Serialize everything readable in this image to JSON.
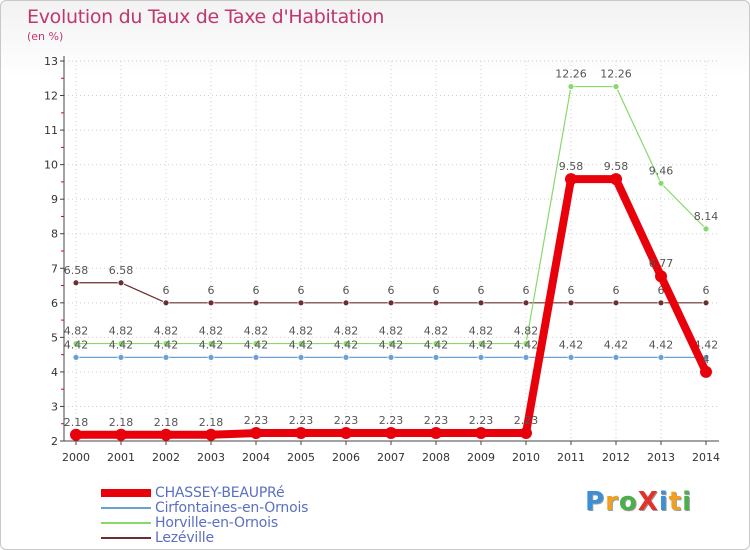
{
  "title": "Evolution du Taux de Taxe d'Habitation",
  "subtitle": "(en %)",
  "logo": {
    "text": "ProXiti",
    "letter_colors": [
      "#3a8fd6",
      "#f0a020",
      "#4cae4c",
      "#e0332b",
      "#3a8fd6",
      "#f0a020",
      "#4cae4c"
    ]
  },
  "chart_data": {
    "type": "line",
    "x": [
      "2000",
      "2001",
      "2002",
      "2003",
      "2004",
      "2005",
      "2006",
      "2007",
      "2008",
      "2009",
      "2010",
      "2011",
      "2012",
      "2013",
      "2014"
    ],
    "ylim": [
      2,
      13
    ],
    "yticks": [
      "2",
      "3",
      "4",
      "5",
      "6",
      "7",
      "8",
      "9",
      "10",
      "11",
      "12",
      "13"
    ],
    "grid": true,
    "legend_position": "bottom-left",
    "series": [
      {
        "name": "Lezéville",
        "color": "#6b2f2f",
        "width": 1.2,
        "marker": 3,
        "values": [
          6.58,
          6.58,
          6,
          6,
          6,
          6,
          6,
          6,
          6,
          6,
          6,
          6,
          6,
          6,
          6
        ],
        "labels": [
          "6.58",
          "6.58",
          "6",
          "6",
          "6",
          "6",
          "6",
          "6",
          "6",
          "6",
          "6",
          "6",
          "6",
          "6",
          "6"
        ]
      },
      {
        "name": "Horville-en-Ornois",
        "color": "#88d96b",
        "width": 1.2,
        "marker": 3,
        "values": [
          4.82,
          4.82,
          4.82,
          4.82,
          4.82,
          4.82,
          4.82,
          4.82,
          4.82,
          4.82,
          4.82,
          12.26,
          12.26,
          9.46,
          8.14
        ],
        "labels": [
          "4.82",
          "4.82",
          "4.82",
          "4.82",
          "4.82",
          "4.82",
          "4.82",
          "4.82",
          "4.82",
          "4.82",
          "4.82",
          "12.26",
          "12.26",
          "9.46",
          "8.14"
        ]
      },
      {
        "name": "Cirfontaines-en-Ornois",
        "color": "#6aa0d8",
        "width": 1.2,
        "marker": 3,
        "values": [
          4.42,
          4.42,
          4.42,
          4.42,
          4.42,
          4.42,
          4.42,
          4.42,
          4.42,
          4.42,
          4.42,
          4.42,
          4.42,
          4.42,
          4.42
        ],
        "labels": [
          "4.42",
          "4.42",
          "4.42",
          "4.42",
          "4.42",
          "4.42",
          "4.42",
          "4.42",
          "4.42",
          "4.42",
          "4.42",
          "4.42",
          "4.42",
          "4.42",
          "4.42"
        ]
      },
      {
        "name": "CHASSEY-BEAUPRé",
        "color": "#e8000b",
        "width": 8,
        "marker": 6,
        "values": [
          2.18,
          2.18,
          2.18,
          2.18,
          2.23,
          2.23,
          2.23,
          2.23,
          2.23,
          2.23,
          2.23,
          9.58,
          9.58,
          6.77,
          4
        ],
        "labels": [
          "2.18",
          "2.18",
          "2.18",
          "2.18",
          "2.23",
          "2.23",
          "2.23",
          "2.23",
          "2.23",
          "2.23",
          "2.23",
          "9.58",
          "9.58",
          "6.77",
          "4"
        ]
      }
    ],
    "legend_order": [
      "CHASSEY-BEAUPRé",
      "Cirfontaines-en-Ornois",
      "Horville-en-Ornois",
      "Lezéville"
    ]
  }
}
